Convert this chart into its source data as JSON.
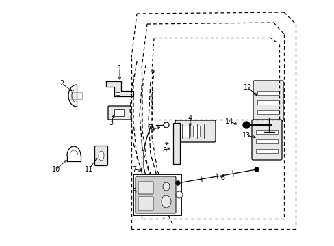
{
  "bg_color": "#ffffff",
  "fig_width": 4.89,
  "fig_height": 3.6,
  "dpi": 100,
  "line_color": "#000000",
  "gray_fill": "#d0d0d0",
  "light_fill": "#e8e8e8"
}
